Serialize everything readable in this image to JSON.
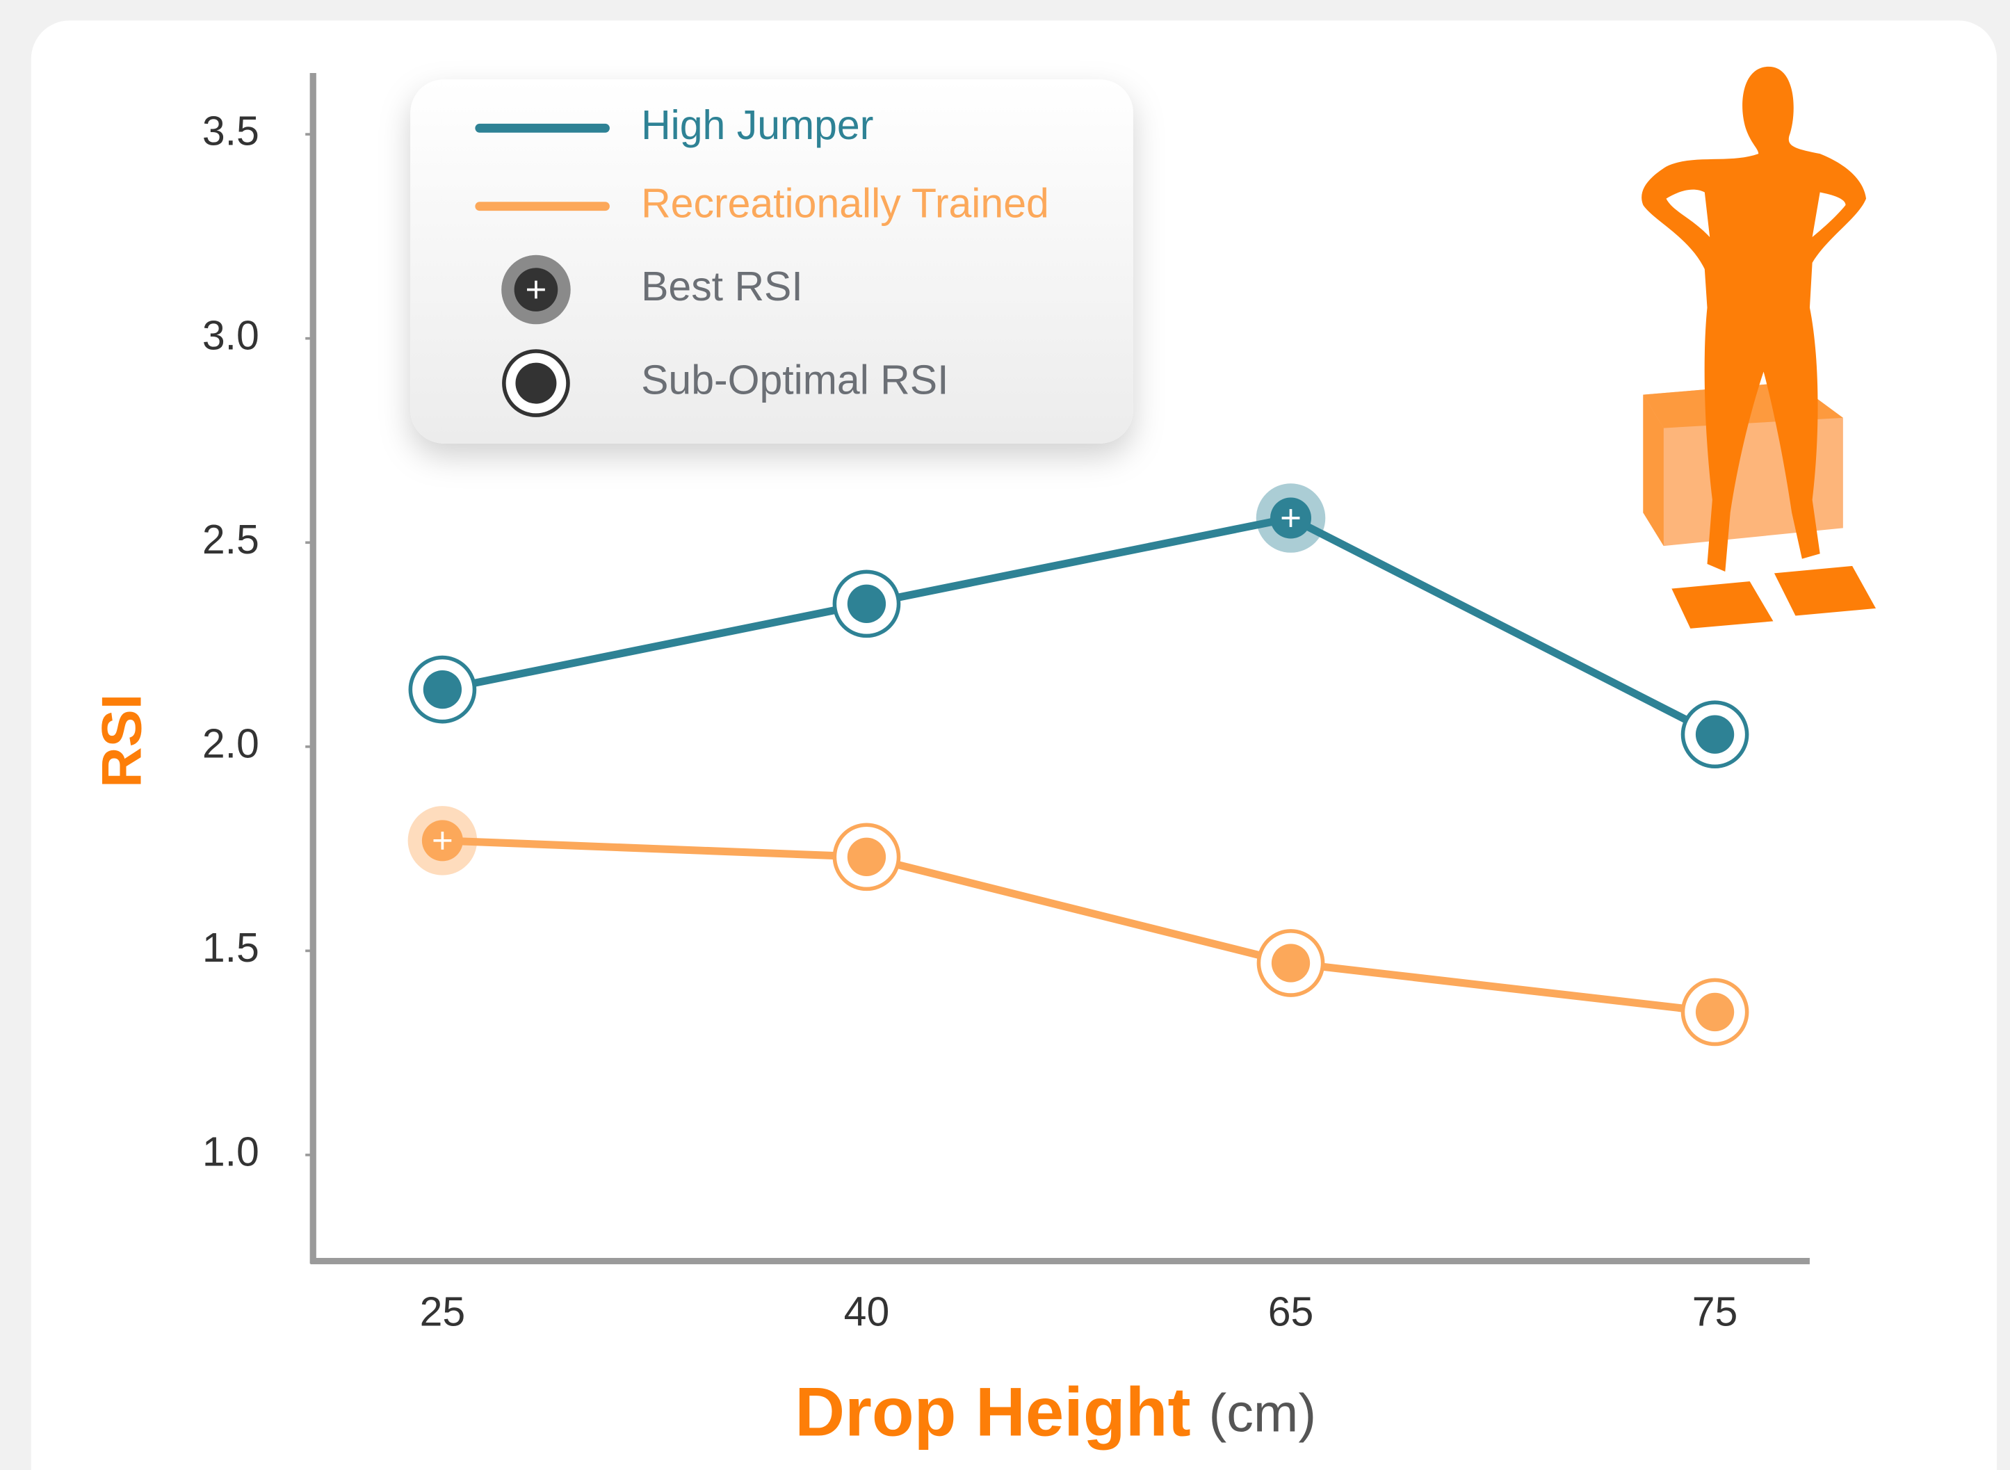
{
  "chart_data": {
    "type": "line",
    "x_label": "Drop Height",
    "x_label_unit": "(cm)",
    "y_label": "RSI",
    "categories": [
      "25",
      "40",
      "65",
      "75"
    ],
    "series": [
      {
        "name": "High Jumper",
        "color": "#2e8295",
        "values": [
          2.14,
          2.35,
          2.56,
          2.03
        ],
        "best_index": 2
      },
      {
        "name": "Recreationally Trained",
        "color": "#fca85a",
        "values": [
          1.77,
          1.73,
          1.47,
          1.35
        ],
        "best_index": 0
      }
    ],
    "marker_legend": [
      "Best RSI",
      "Sub-Optimal RSI"
    ],
    "ylim": [
      0.74,
      3.65
    ],
    "yticks": [
      {
        "value": 1.0,
        "label": "1.0"
      },
      1.5,
      {
        "value": 2.0,
        "label": "2.0"
      },
      2.5,
      {
        "value": 3.0,
        "label": "3.0"
      },
      3.5
    ]
  }
}
